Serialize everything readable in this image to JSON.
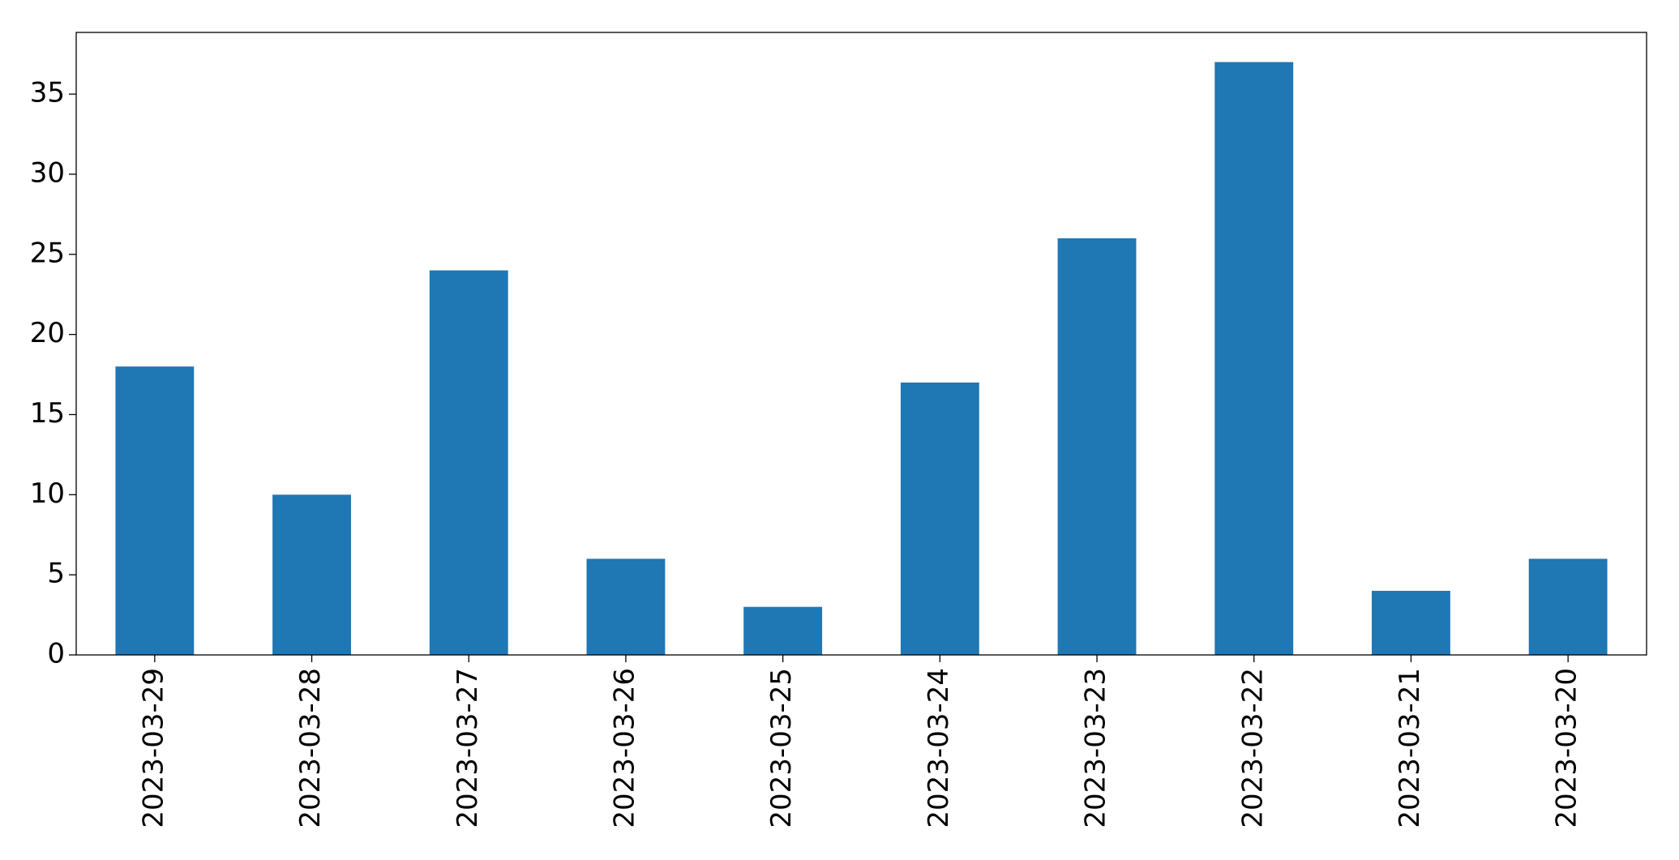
{
  "chart_data": {
    "type": "bar",
    "categories": [
      "2023-03-29",
      "2023-03-28",
      "2023-03-27",
      "2023-03-26",
      "2023-03-25",
      "2023-03-24",
      "2023-03-23",
      "2023-03-22",
      "2023-03-21",
      "2023-03-20"
    ],
    "values": [
      18,
      10,
      24,
      6,
      3,
      17,
      26,
      37,
      4,
      6
    ],
    "color": "#1f77b4",
    "ylim": [
      0,
      38.85
    ],
    "yticks": [
      0,
      5,
      10,
      15,
      20,
      25,
      30,
      35
    ],
    "grid": false
  }
}
